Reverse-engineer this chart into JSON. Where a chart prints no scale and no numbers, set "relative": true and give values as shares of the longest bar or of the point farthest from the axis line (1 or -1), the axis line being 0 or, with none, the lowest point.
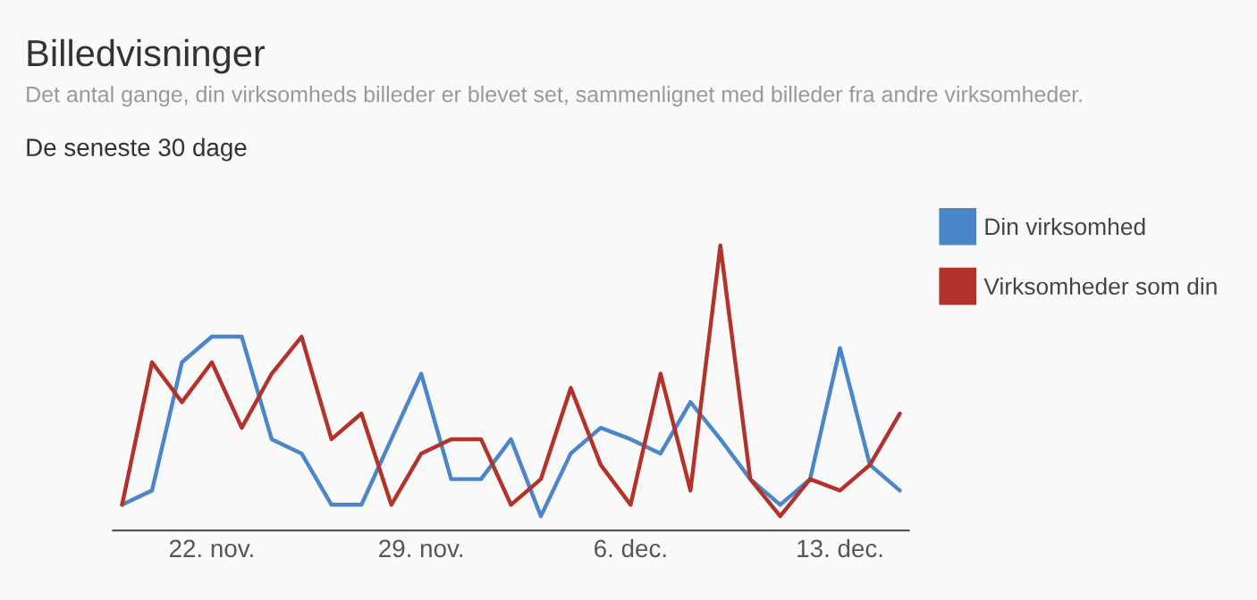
{
  "chart_data": {
    "type": "line",
    "title": "Billedvisninger",
    "subtitle": "Det antal gange, din virksomheds billeder er blevet set, sammenlignet med billeder fra andre virksomheder.",
    "annotations": [
      "De seneste 30 dage"
    ],
    "relative": true,
    "categories": [
      null,
      null,
      null,
      "22. nov.",
      null,
      null,
      null,
      null,
      null,
      null,
      "29. nov.",
      null,
      null,
      null,
      null,
      null,
      null,
      "6. dec.",
      null,
      null,
      null,
      null,
      null,
      null,
      "13. dec.",
      null,
      null
    ],
    "series": [
      {
        "name": "Din virksomhed",
        "color": "#4a86c8",
        "values": [
          0.09,
          0.14,
          0.59,
          0.68,
          0.68,
          0.32,
          0.27,
          0.09,
          0.09,
          0.32,
          0.55,
          0.18,
          0.18,
          0.32,
          0.05,
          0.27,
          0.36,
          0.32,
          0.27,
          0.45,
          0.32,
          0.18,
          0.09,
          0.18,
          0.64,
          0.23,
          0.14
        ]
      },
      {
        "name": "Virksomheder som din",
        "color": "#b3322a",
        "values": [
          0.09,
          0.59,
          0.45,
          0.59,
          0.36,
          0.55,
          0.68,
          0.32,
          0.41,
          0.09,
          0.27,
          0.32,
          0.32,
          0.09,
          0.18,
          0.5,
          0.23,
          0.09,
          0.55,
          0.14,
          1,
          0.18,
          0.05,
          0.18,
          0.14,
          0.23,
          0.41
        ]
      }
    ],
    "legend": "right",
    "marker": "none",
    "line_style": "solid"
  }
}
